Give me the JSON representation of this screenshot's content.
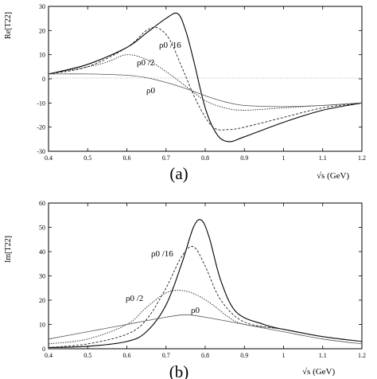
{
  "chart_data": [
    {
      "panel": "(a)",
      "type": "line",
      "ylabel": "Re[T22]",
      "xlabel": "√s (GeV)",
      "xlim": [
        0.4,
        1.2
      ],
      "ylim": [
        -30,
        30
      ],
      "xticks": [
        "0.4",
        "0.5",
        "0.6",
        "0.7",
        "0.8",
        "0.9",
        "1",
        "1.1",
        "1.2"
      ],
      "yticks": [
        "30",
        "20",
        "10",
        "0",
        "-10",
        "-20",
        "-30"
      ],
      "zero_line": true,
      "series": [
        {
          "name": "ρ0 /16",
          "style": "solid",
          "x": [
            0.4,
            0.5,
            0.6,
            0.65,
            0.7,
            0.73,
            0.75,
            0.77,
            0.8,
            0.83,
            0.86,
            0.9,
            1.0,
            1.1,
            1.2
          ],
          "y": [
            2,
            6,
            13,
            19,
            25,
            27,
            20,
            8,
            -12,
            -23,
            -26,
            -24,
            -18,
            -13,
            -10
          ]
        },
        {
          "name": "ρ0 /16",
          "style": "dashed",
          "x": [
            0.4,
            0.5,
            0.6,
            0.65,
            0.68,
            0.71,
            0.74,
            0.78,
            0.82,
            0.86,
            0.9,
            1.0,
            1.1,
            1.2
          ],
          "y": [
            2,
            5,
            13,
            20,
            21,
            16,
            5,
            -10,
            -20,
            -21,
            -20,
            -16,
            -12,
            -10
          ]
        },
        {
          "name": "ρ0 /2",
          "style": "dotted",
          "x": [
            0.4,
            0.5,
            0.55,
            0.6,
            0.65,
            0.7,
            0.75,
            0.8,
            0.85,
            0.9,
            1.0,
            1.1,
            1.2
          ],
          "y": [
            2,
            5,
            7,
            10,
            8,
            3,
            -3,
            -9,
            -12,
            -13,
            -12,
            -11,
            -10
          ]
        },
        {
          "name": "ρ0",
          "style": "solid-light",
          "x": [
            0.4,
            0.5,
            0.6,
            0.65,
            0.7,
            0.75,
            0.8,
            0.85,
            0.9,
            1.0,
            1.1,
            1.2
          ],
          "y": [
            2,
            2,
            1.5,
            0.5,
            -1.5,
            -4,
            -7,
            -9.5,
            -11,
            -11.5,
            -11,
            -10
          ]
        }
      ],
      "annotations": [
        "ρ0 /16",
        "ρ0 /2",
        "ρ0"
      ]
    },
    {
      "panel": "(b)",
      "type": "line",
      "ylabel": "Im[T22]",
      "xlabel": "√s (GeV)",
      "xlim": [
        0.4,
        1.2
      ],
      "ylim": [
        0,
        60
      ],
      "xticks": [
        "0.4",
        "0.5",
        "0.6",
        "0.7",
        "0.8",
        "0.9",
        "1",
        "1.1",
        "1.2"
      ],
      "yticks": [
        "60",
        "50",
        "40",
        "30",
        "20",
        "10",
        "0"
      ],
      "series": [
        {
          "name": "ρ0 /16",
          "style": "solid",
          "x": [
            0.4,
            0.5,
            0.6,
            0.65,
            0.7,
            0.74,
            0.77,
            0.79,
            0.81,
            0.84,
            0.88,
            0.95,
            1.0,
            1.1,
            1.2
          ],
          "y": [
            0.5,
            1,
            3,
            7,
            18,
            35,
            50,
            53,
            46,
            28,
            15,
            10,
            8,
            5,
            3
          ]
        },
        {
          "name": "ρ0 /16",
          "style": "dashed",
          "x": [
            0.4,
            0.5,
            0.6,
            0.65,
            0.7,
            0.74,
            0.77,
            0.8,
            0.84,
            0.9,
            1.0,
            1.1,
            1.2
          ],
          "y": [
            0.5,
            2,
            6,
            12,
            25,
            38,
            42,
            34,
            20,
            11,
            8,
            5,
            3
          ]
        },
        {
          "name": "ρ0 /2",
          "style": "dotted",
          "x": [
            0.4,
            0.5,
            0.6,
            0.65,
            0.7,
            0.74,
            0.78,
            0.82,
            0.86,
            0.9,
            1.0,
            1.1,
            1.2
          ],
          "y": [
            2,
            4,
            10,
            17,
            23,
            24,
            22,
            18,
            13,
            10,
            8,
            5,
            3
          ]
        },
        {
          "name": "ρ0",
          "style": "solid-light",
          "x": [
            0.4,
            0.5,
            0.6,
            0.7,
            0.75,
            0.8,
            0.9,
            1.0,
            1.1,
            1.2
          ],
          "y": [
            4,
            7,
            10,
            13,
            14,
            13,
            10,
            7,
            4,
            2
          ]
        }
      ],
      "annotations": [
        "ρ0 /16",
        "ρ0 /2",
        "ρ0"
      ]
    }
  ]
}
